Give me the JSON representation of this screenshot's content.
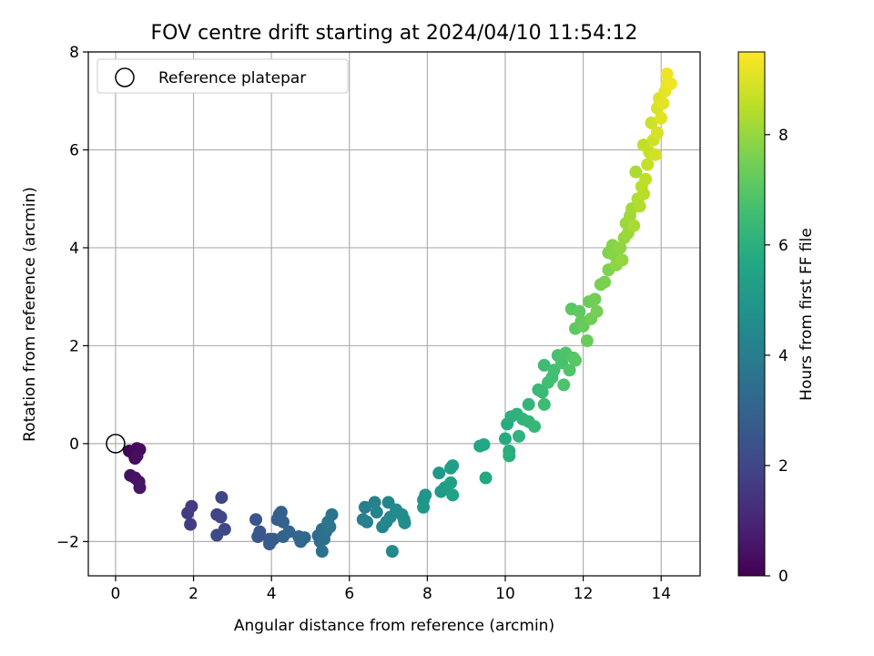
{
  "chart_data": {
    "type": "scatter",
    "title": "FOV centre drift starting at 2024/04/10 11:54:12",
    "xlabel": "Angular distance from reference (arcmin)",
    "ylabel": "Rotation from reference (arcmin)",
    "xlim": [
      -0.7,
      15.0
    ],
    "ylim": [
      -2.7,
      8.0
    ],
    "xticks": [
      0,
      2,
      4,
      6,
      8,
      10,
      12,
      14
    ],
    "yticks": [
      -2,
      0,
      2,
      4,
      6,
      8
    ],
    "grid": true,
    "legend": {
      "placement": "upper-left",
      "entries": [
        "Reference platepar"
      ]
    },
    "reference_point": {
      "label": "Reference platepar",
      "x": 0,
      "y": 0
    },
    "colorbar": {
      "label": "Hours from first FF file",
      "range": [
        0,
        9.5
      ],
      "ticks": [
        0,
        2,
        4,
        6,
        8
      ],
      "colormap": "viridis"
    },
    "points": [
      {
        "x": 0.35,
        "y": -0.15,
        "c": 0.1
      },
      {
        "x": 0.45,
        "y": -0.2,
        "c": 0.15
      },
      {
        "x": 0.55,
        "y": -0.1,
        "c": 0.2
      },
      {
        "x": 0.5,
        "y": -0.3,
        "c": 0.25
      },
      {
        "x": 0.62,
        "y": -0.12,
        "c": 0.3
      },
      {
        "x": 0.55,
        "y": -0.25,
        "c": 0.35
      },
      {
        "x": 0.38,
        "y": -0.65,
        "c": 0.4
      },
      {
        "x": 0.5,
        "y": -0.7,
        "c": 0.45
      },
      {
        "x": 0.6,
        "y": -0.78,
        "c": 0.5
      },
      {
        "x": 0.62,
        "y": -0.9,
        "c": 0.55
      },
      {
        "x": 1.85,
        "y": -1.42,
        "c": 1.6
      },
      {
        "x": 1.95,
        "y": -1.28,
        "c": 1.65
      },
      {
        "x": 1.92,
        "y": -1.65,
        "c": 1.7
      },
      {
        "x": 2.6,
        "y": -1.45,
        "c": 1.9
      },
      {
        "x": 2.72,
        "y": -1.1,
        "c": 1.95
      },
      {
        "x": 2.7,
        "y": -1.5,
        "c": 2.0
      },
      {
        "x": 2.8,
        "y": -1.75,
        "c": 2.05
      },
      {
        "x": 2.6,
        "y": -1.87,
        "c": 2.1
      },
      {
        "x": 3.6,
        "y": -1.55,
        "c": 2.5
      },
      {
        "x": 3.7,
        "y": -1.8,
        "c": 2.55
      },
      {
        "x": 3.65,
        "y": -1.9,
        "c": 2.6
      },
      {
        "x": 3.95,
        "y": -1.95,
        "c": 2.65
      },
      {
        "x": 3.95,
        "y": -2.05,
        "c": 2.7
      },
      {
        "x": 4.05,
        "y": -1.95,
        "c": 2.75
      },
      {
        "x": 4.2,
        "y": -1.45,
        "c": 2.8
      },
      {
        "x": 4.15,
        "y": -1.55,
        "c": 2.85
      },
      {
        "x": 4.25,
        "y": -1.4,
        "c": 2.9
      },
      {
        "x": 4.3,
        "y": -1.6,
        "c": 2.95
      },
      {
        "x": 4.3,
        "y": -1.9,
        "c": 3.0
      },
      {
        "x": 4.45,
        "y": -1.8,
        "c": 3.05
      },
      {
        "x": 4.7,
        "y": -1.9,
        "c": 3.1
      },
      {
        "x": 4.75,
        "y": -2.0,
        "c": 3.15
      },
      {
        "x": 4.85,
        "y": -1.92,
        "c": 3.2
      },
      {
        "x": 5.2,
        "y": -1.88,
        "c": 3.3
      },
      {
        "x": 5.3,
        "y": -1.75,
        "c": 3.35
      },
      {
        "x": 5.25,
        "y": -2.0,
        "c": 3.4
      },
      {
        "x": 5.35,
        "y": -1.95,
        "c": 3.45
      },
      {
        "x": 5.3,
        "y": -2.2,
        "c": 3.5
      },
      {
        "x": 5.4,
        "y": -1.8,
        "c": 3.55
      },
      {
        "x": 5.5,
        "y": -1.7,
        "c": 3.6
      },
      {
        "x": 5.55,
        "y": -1.45,
        "c": 3.65
      },
      {
        "x": 5.45,
        "y": -1.6,
        "c": 3.7
      },
      {
        "x": 6.4,
        "y": -1.3,
        "c": 4.0
      },
      {
        "x": 6.35,
        "y": -1.55,
        "c": 4.05
      },
      {
        "x": 6.45,
        "y": -1.6,
        "c": 4.1
      },
      {
        "x": 6.65,
        "y": -1.2,
        "c": 4.15
      },
      {
        "x": 6.7,
        "y": -1.4,
        "c": 4.2
      },
      {
        "x": 6.85,
        "y": -1.7,
        "c": 4.25
      },
      {
        "x": 7.0,
        "y": -1.2,
        "c": 4.3
      },
      {
        "x": 6.95,
        "y": -1.6,
        "c": 4.35
      },
      {
        "x": 7.05,
        "y": -1.5,
        "c": 4.4
      },
      {
        "x": 7.1,
        "y": -2.2,
        "c": 4.45
      },
      {
        "x": 7.2,
        "y": -1.35,
        "c": 4.5
      },
      {
        "x": 7.35,
        "y": -1.45,
        "c": 4.55
      },
      {
        "x": 7.4,
        "y": -1.55,
        "c": 4.6
      },
      {
        "x": 7.42,
        "y": -1.62,
        "c": 4.65
      },
      {
        "x": 7.9,
        "y": -1.15,
        "c": 4.9
      },
      {
        "x": 7.95,
        "y": -1.05,
        "c": 4.95
      },
      {
        "x": 7.9,
        "y": -1.3,
        "c": 5.0
      },
      {
        "x": 8.3,
        "y": -0.6,
        "c": 5.1
      },
      {
        "x": 8.35,
        "y": -0.98,
        "c": 5.15
      },
      {
        "x": 8.45,
        "y": -0.9,
        "c": 5.2
      },
      {
        "x": 8.6,
        "y": -0.5,
        "c": 5.25
      },
      {
        "x": 8.65,
        "y": -0.45,
        "c": 5.3
      },
      {
        "x": 8.6,
        "y": -0.8,
        "c": 5.35
      },
      {
        "x": 8.65,
        "y": -1.05,
        "c": 5.4
      },
      {
        "x": 9.35,
        "y": -0.05,
        "c": 5.6
      },
      {
        "x": 9.45,
        "y": -0.02,
        "c": 5.65
      },
      {
        "x": 9.5,
        "y": -0.7,
        "c": 5.7
      },
      {
        "x": 10.0,
        "y": 0.1,
        "c": 5.8
      },
      {
        "x": 10.05,
        "y": 0.4,
        "c": 5.85
      },
      {
        "x": 10.1,
        "y": -0.15,
        "c": 5.9
      },
      {
        "x": 10.1,
        "y": -0.25,
        "c": 5.95
      },
      {
        "x": 10.15,
        "y": 0.55,
        "c": 6.0
      },
      {
        "x": 10.3,
        "y": 0.6,
        "c": 6.05
      },
      {
        "x": 10.35,
        "y": 0.15,
        "c": 6.1
      },
      {
        "x": 10.45,
        "y": 0.5,
        "c": 6.15
      },
      {
        "x": 10.6,
        "y": 0.8,
        "c": 6.2
      },
      {
        "x": 10.6,
        "y": 0.45,
        "c": 6.25
      },
      {
        "x": 10.75,
        "y": 0.35,
        "c": 6.3
      },
      {
        "x": 10.85,
        "y": 1.1,
        "c": 6.35
      },
      {
        "x": 10.95,
        "y": 1.05,
        "c": 6.4
      },
      {
        "x": 11.0,
        "y": 0.8,
        "c": 6.45
      },
      {
        "x": 11.0,
        "y": 1.6,
        "c": 6.5
      },
      {
        "x": 11.1,
        "y": 1.25,
        "c": 6.55
      },
      {
        "x": 11.2,
        "y": 1.35,
        "c": 6.6
      },
      {
        "x": 11.25,
        "y": 1.5,
        "c": 6.65
      },
      {
        "x": 11.35,
        "y": 1.8,
        "c": 6.7
      },
      {
        "x": 11.45,
        "y": 1.65,
        "c": 6.75
      },
      {
        "x": 11.5,
        "y": 1.2,
        "c": 6.8
      },
      {
        "x": 11.55,
        "y": 1.85,
        "c": 6.85
      },
      {
        "x": 11.65,
        "y": 1.5,
        "c": 6.9
      },
      {
        "x": 11.75,
        "y": 1.75,
        "c": 6.95
      },
      {
        "x": 11.8,
        "y": 1.7,
        "c": 7.0
      },
      {
        "x": 11.7,
        "y": 2.75,
        "c": 7.05
      },
      {
        "x": 11.8,
        "y": 2.35,
        "c": 7.1
      },
      {
        "x": 11.9,
        "y": 2.7,
        "c": 7.15
      },
      {
        "x": 11.95,
        "y": 2.5,
        "c": 7.2
      },
      {
        "x": 12.0,
        "y": 2.4,
        "c": 7.25
      },
      {
        "x": 12.1,
        "y": 2.1,
        "c": 7.3
      },
      {
        "x": 12.15,
        "y": 2.9,
        "c": 7.35
      },
      {
        "x": 12.2,
        "y": 2.55,
        "c": 7.4
      },
      {
        "x": 12.3,
        "y": 2.95,
        "c": 7.45
      },
      {
        "x": 12.35,
        "y": 2.7,
        "c": 7.5
      },
      {
        "x": 12.45,
        "y": 3.25,
        "c": 7.55
      },
      {
        "x": 12.55,
        "y": 3.3,
        "c": 7.6
      },
      {
        "x": 12.65,
        "y": 3.55,
        "c": 7.65
      },
      {
        "x": 12.65,
        "y": 3.9,
        "c": 7.7
      },
      {
        "x": 12.75,
        "y": 4.05,
        "c": 7.75
      },
      {
        "x": 12.8,
        "y": 3.85,
        "c": 7.8
      },
      {
        "x": 12.85,
        "y": 3.65,
        "c": 7.85
      },
      {
        "x": 12.95,
        "y": 4.0,
        "c": 7.9
      },
      {
        "x": 13.0,
        "y": 3.75,
        "c": 7.95
      },
      {
        "x": 13.05,
        "y": 4.2,
        "c": 8.0
      },
      {
        "x": 13.1,
        "y": 4.5,
        "c": 8.05
      },
      {
        "x": 13.15,
        "y": 4.3,
        "c": 8.1
      },
      {
        "x": 13.2,
        "y": 4.65,
        "c": 8.15
      },
      {
        "x": 13.25,
        "y": 4.8,
        "c": 8.2
      },
      {
        "x": 13.3,
        "y": 4.45,
        "c": 8.25
      },
      {
        "x": 13.35,
        "y": 5.55,
        "c": 8.3
      },
      {
        "x": 13.4,
        "y": 5.0,
        "c": 8.35
      },
      {
        "x": 13.45,
        "y": 4.85,
        "c": 8.4
      },
      {
        "x": 13.5,
        "y": 5.25,
        "c": 8.45
      },
      {
        "x": 13.55,
        "y": 5.1,
        "c": 8.5
      },
      {
        "x": 13.6,
        "y": 5.4,
        "c": 8.55
      },
      {
        "x": 13.55,
        "y": 6.1,
        "c": 8.6
      },
      {
        "x": 13.65,
        "y": 5.7,
        "c": 8.65
      },
      {
        "x": 13.7,
        "y": 5.95,
        "c": 8.7
      },
      {
        "x": 13.75,
        "y": 6.55,
        "c": 8.75
      },
      {
        "x": 13.8,
        "y": 6.2,
        "c": 8.8
      },
      {
        "x": 13.85,
        "y": 5.9,
        "c": 8.85
      },
      {
        "x": 13.9,
        "y": 6.35,
        "c": 8.9
      },
      {
        "x": 13.9,
        "y": 6.85,
        "c": 8.95
      },
      {
        "x": 13.95,
        "y": 7.05,
        "c": 9.0
      },
      {
        "x": 14.0,
        "y": 6.65,
        "c": 9.05
      },
      {
        "x": 14.05,
        "y": 6.95,
        "c": 9.1
      },
      {
        "x": 14.1,
        "y": 7.2,
        "c": 9.15
      },
      {
        "x": 14.15,
        "y": 7.35,
        "c": 9.2
      },
      {
        "x": 14.15,
        "y": 7.55,
        "c": 9.25
      },
      {
        "x": 14.25,
        "y": 7.35,
        "c": 9.3
      }
    ]
  }
}
